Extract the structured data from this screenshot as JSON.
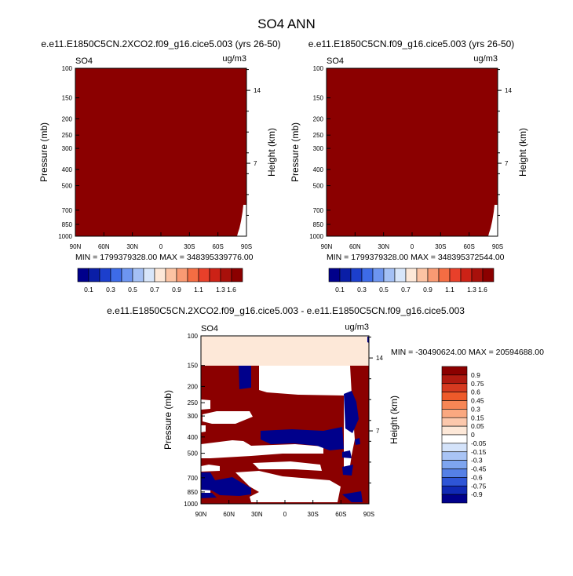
{
  "figure_title": "SO4 ANN",
  "colors": {
    "dark_red": "#8b0000",
    "navy": "#00008b",
    "peach": "#fde8d8",
    "white": "#ffffff",
    "frame": "#000000"
  },
  "chart_data": [
    {
      "type": "heatmap",
      "title": "e.e11.E1850C5CN.2XCO2.f09_g16.cice5.003 (yrs 26-50)",
      "left_label": "SO4",
      "right_label": "ug/m3",
      "ylabel": "Pressure (mb)",
      "ylabel_right": "Height (km)",
      "x_ticks": [
        "90N",
        "60N",
        "30N",
        "0",
        "30S",
        "60S",
        "90S"
      ],
      "x_range": [
        90,
        -90
      ],
      "y_ticks": [
        "100",
        "150",
        "200",
        "250",
        "300",
        "400",
        "500",
        "700",
        "850",
        "1000"
      ],
      "y_range": [
        100,
        1000
      ],
      "y_scale": "log",
      "y_right_ticks": [
        "14",
        "7"
      ],
      "stats": "MIN = 1799379328.00   MAX = 348395339776.00",
      "fill": "above top contour level (>1.6) nearly everywhere",
      "colorbar": {
        "levels": [
          "0.1",
          "0.3",
          "0.5",
          "0.7",
          "0.9",
          "1.1",
          "1.3",
          "1.6"
        ],
        "colors": [
          "#00008b",
          "#0a1ea6",
          "#1c3fcc",
          "#3d6be8",
          "#6d95f0",
          "#a4c0f5",
          "#d8e6fa",
          "#fde8d8",
          "#fcc3a3",
          "#f99a73",
          "#f46d43",
          "#e8402a",
          "#cc2216",
          "#a8100b",
          "#8b0000"
        ]
      }
    },
    {
      "type": "heatmap",
      "title": "e.e11.E1850C5CN.f09_g16.cice5.003 (yrs 26-50)",
      "left_label": "SO4",
      "right_label": "ug/m3",
      "ylabel": "Pressure (mb)",
      "ylabel_right": "Height (km)",
      "x_ticks": [
        "90N",
        "60N",
        "30N",
        "0",
        "30S",
        "60S",
        "90S"
      ],
      "x_range": [
        90,
        -90
      ],
      "y_ticks": [
        "100",
        "150",
        "200",
        "250",
        "300",
        "400",
        "500",
        "700",
        "850",
        "1000"
      ],
      "y_range": [
        100,
        1000
      ],
      "y_scale": "log",
      "y_right_ticks": [
        "14",
        "7"
      ],
      "stats": "MIN = 1799379328.00   MAX = 348395372544.00",
      "fill": "above top contour level (>1.6) nearly everywhere",
      "colorbar": {
        "levels": [
          "0.1",
          "0.3",
          "0.5",
          "0.7",
          "0.9",
          "1.1",
          "1.3",
          "1.6"
        ],
        "colors": [
          "#00008b",
          "#0a1ea6",
          "#1c3fcc",
          "#3d6be8",
          "#6d95f0",
          "#a4c0f5",
          "#d8e6fa",
          "#fde8d8",
          "#fcc3a3",
          "#f99a73",
          "#f46d43",
          "#e8402a",
          "#cc2216",
          "#a8100b",
          "#8b0000"
        ]
      }
    },
    {
      "type": "heatmap",
      "title": "e.e11.E1850C5CN.2XCO2.f09_g16.cice5.003 - e.e11.E1850C5CN.f09_g16.cice5.003",
      "left_label": "SO4",
      "right_label": "ug/m3",
      "ylabel": "Pressure (mb)",
      "ylabel_right": "Height (km)",
      "x_ticks": [
        "90N",
        "60N",
        "30N",
        "0",
        "30S",
        "60S",
        "90S"
      ],
      "x_range": [
        90,
        -90
      ],
      "y_ticks": [
        "100",
        "150",
        "200",
        "250",
        "300",
        "400",
        "500",
        "700",
        "850",
        "1000"
      ],
      "y_range": [
        100,
        1000
      ],
      "y_scale": "log",
      "y_right_ticks": [
        "14",
        "7"
      ],
      "stats": "MIN = -30490624.00  MAX = 20594688.00",
      "colorbar": {
        "levels": [
          "0.9",
          "0.75",
          "0.6",
          "0.45",
          "0.3",
          "0.15",
          "0.05",
          "0",
          "-0.05",
          "-0.15",
          "-0.3",
          "-0.45",
          "-0.6",
          "-0.75",
          "-0.9"
        ],
        "colors": [
          "#8b0000",
          "#b01a10",
          "#d63a20",
          "#ee5a2a",
          "#f78655",
          "#faa880",
          "#fcc8ac",
          "#fde8d8",
          "#ffffff",
          "#d4e3fa",
          "#a9c4f5",
          "#7ea5ef",
          "#5580e6",
          "#2e55d6",
          "#1029b4",
          "#00008b"
        ]
      }
    }
  ]
}
